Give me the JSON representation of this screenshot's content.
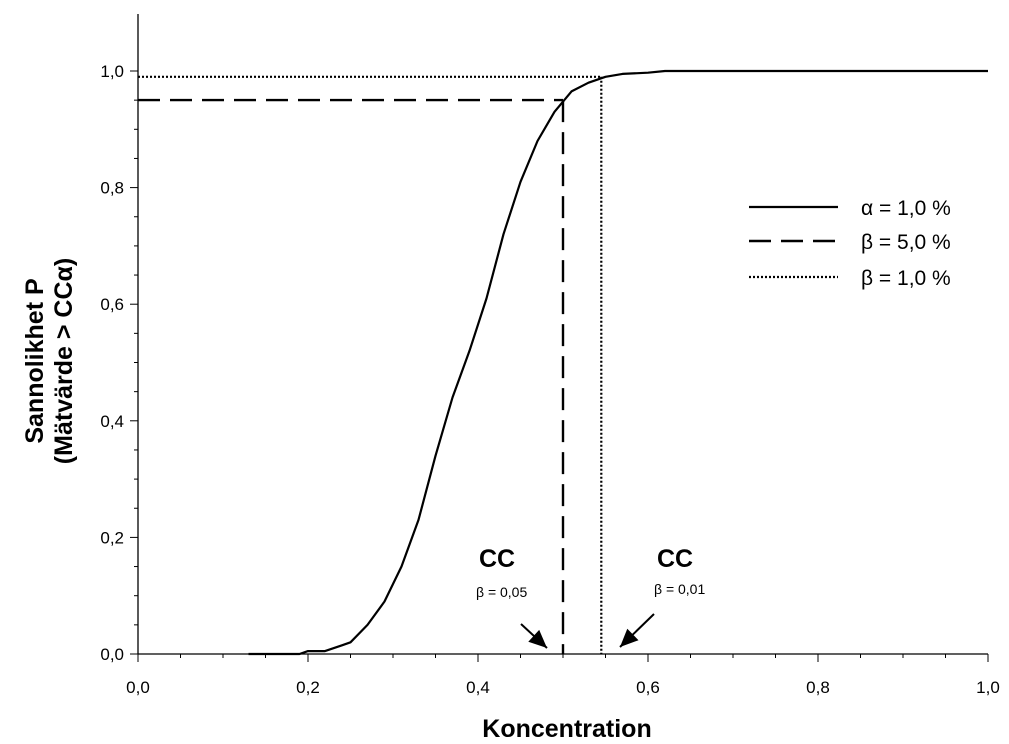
{
  "chart_data": {
    "type": "line",
    "title": "",
    "xlabel": "Koncentration",
    "ylabel_lines": [
      "Sannolikhet P",
      "(Mätvärde > CCα)"
    ],
    "xlim": [
      0,
      1.0
    ],
    "ylim": [
      0,
      1.0
    ],
    "x_ticks": [
      "0,0",
      "0,2",
      "0,4",
      "0,6",
      "0,8",
      "1,0"
    ],
    "y_ticks": [
      "0,0",
      "0,2",
      "0,4",
      "0,6",
      "0,8",
      "1,0"
    ],
    "grid": false,
    "legend_position": "right",
    "series": [
      {
        "name": "α = 1,0 %",
        "style": "solid",
        "x": [
          0.13,
          0.19,
          0.2,
          0.22,
          0.24,
          0.25,
          0.27,
          0.29,
          0.31,
          0.33,
          0.35,
          0.37,
          0.39,
          0.41,
          0.43,
          0.45,
          0.47,
          0.49,
          0.51,
          0.53,
          0.55,
          0.57,
          0.6,
          0.62,
          0.7,
          0.8,
          0.9,
          1.0
        ],
        "y": [
          0.0,
          0.0,
          0.005,
          0.005,
          0.015,
          0.02,
          0.05,
          0.09,
          0.15,
          0.23,
          0.34,
          0.44,
          0.52,
          0.61,
          0.72,
          0.81,
          0.88,
          0.93,
          0.965,
          0.98,
          0.99,
          0.995,
          0.997,
          1.0,
          1.0,
          1.0,
          1.0,
          1.0
        ]
      },
      {
        "name": "β = 5,0 %",
        "style": "dashed",
        "segments": [
          {
            "x": [
              0,
              0.5
            ],
            "y": [
              0.95,
              0.95
            ]
          },
          {
            "x": [
              0.5,
              0.5
            ],
            "y": [
              0.95,
              0
            ]
          }
        ]
      },
      {
        "name": "β = 1,0 %",
        "style": "dotted",
        "segments": [
          {
            "x": [
              0,
              0.545
            ],
            "y": [
              0.99,
              0.99
            ]
          },
          {
            "x": [
              0.545,
              0.545
            ],
            "y": [
              0.99,
              0
            ]
          }
        ]
      }
    ],
    "annotations": [
      {
        "main": "CC",
        "sub": "β = 0,05",
        "arrow_to_x": 0.5
      },
      {
        "main": "CC",
        "sub": "β = 0,01",
        "arrow_to_x": 0.545
      }
    ]
  }
}
